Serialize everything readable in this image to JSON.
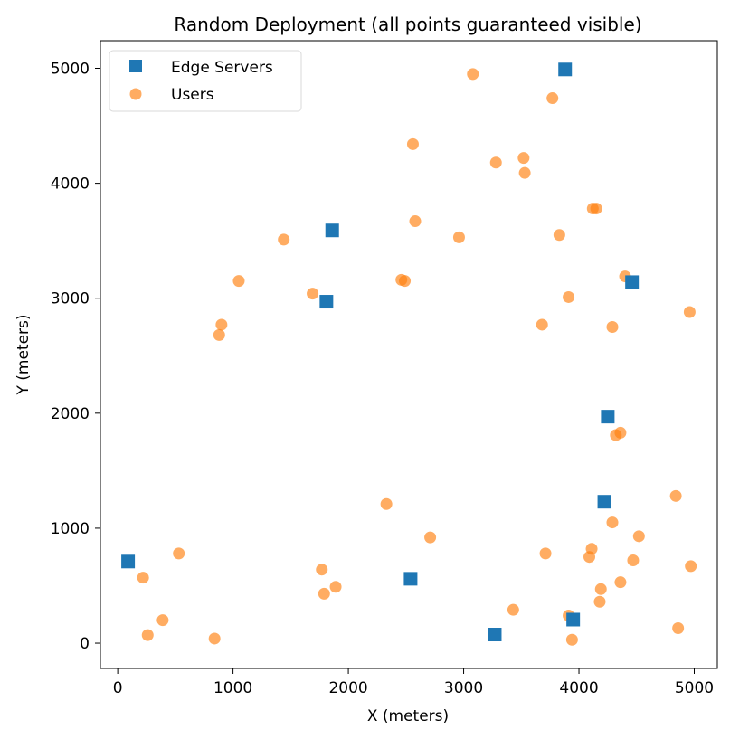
{
  "chart_data": {
    "type": "scatter",
    "title": "Random Deployment (all points guaranteed visible)",
    "xlabel": "X (meters)",
    "ylabel": "Y (meters)",
    "xlim": [
      -150,
      5200
    ],
    "ylim": [
      -220,
      5240
    ],
    "xticks": [
      0,
      1000,
      2000,
      3000,
      4000,
      5000
    ],
    "yticks": [
      0,
      1000,
      2000,
      3000,
      4000,
      5000
    ],
    "xtick_labels": [
      "0",
      "1000",
      "2000",
      "3000",
      "4000",
      "5000"
    ],
    "ytick_labels": [
      "0",
      "1000",
      "2000",
      "3000",
      "4000",
      "5000"
    ],
    "grid": false,
    "legend": {
      "position": "top-left"
    },
    "series": [
      {
        "name": "Edge Servers",
        "marker": "square",
        "color": "#1f77b4",
        "x": [
          90,
          1860,
          1810,
          2540,
          3270,
          3880,
          3950,
          4250,
          4220,
          4460
        ],
        "y": [
          710,
          3590,
          2970,
          560,
          75,
          4990,
          205,
          1970,
          1230,
          3140
        ]
      },
      {
        "name": "Users",
        "marker": "circle",
        "color": "#ff7f0e",
        "opacity": 0.65,
        "x": [
          3080,
          3770,
          2560,
          3280,
          3520,
          3530,
          4120,
          4150,
          2580,
          2960,
          3830,
          1440,
          1050,
          1690,
          2460,
          2490,
          3910,
          4400,
          900,
          880,
          3680,
          4290,
          4960,
          4320,
          4360,
          2330,
          4840,
          4290,
          2710,
          4520,
          530,
          3710,
          4110,
          4090,
          4470,
          4970,
          220,
          1770,
          1890,
          1790,
          4190,
          4360,
          4180,
          3430,
          3910,
          390,
          260,
          840,
          3940,
          4860
        ],
        "y": [
          4950,
          4740,
          4340,
          4180,
          4220,
          4090,
          3780,
          3780,
          3670,
          3530,
          3550,
          3510,
          3150,
          3040,
          3160,
          3150,
          3010,
          3190,
          2770,
          2680,
          2770,
          2750,
          2880,
          1810,
          1830,
          1210,
          1280,
          1050,
          920,
          930,
          780,
          780,
          820,
          750,
          720,
          670,
          570,
          640,
          490,
          430,
          470,
          530,
          360,
          290,
          240,
          200,
          70,
          40,
          30,
          130
        ]
      }
    ]
  }
}
